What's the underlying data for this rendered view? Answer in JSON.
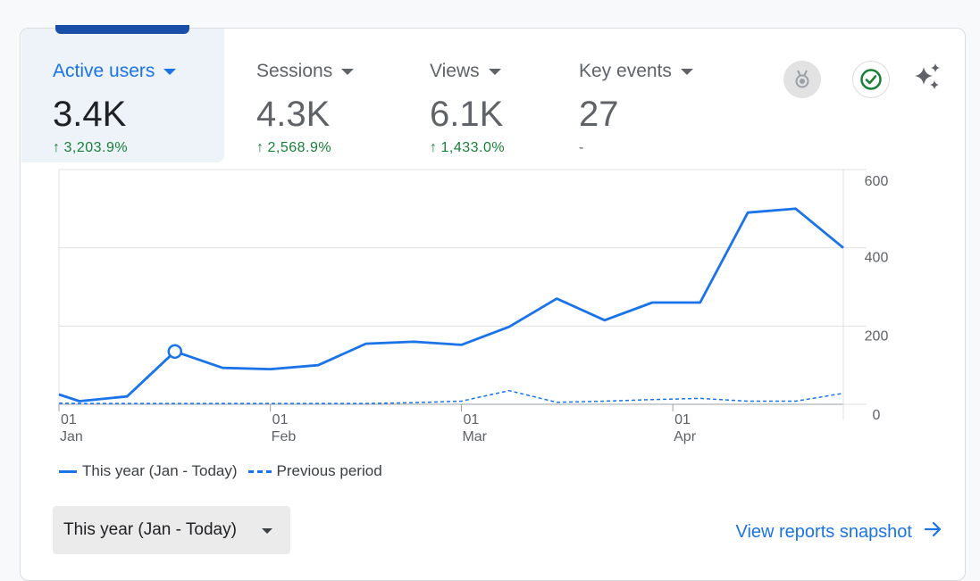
{
  "metrics": [
    {
      "label": "Active users",
      "value": "3.4K",
      "change": "3,203.9%"
    },
    {
      "label": "Sessions",
      "value": "4.3K",
      "change": "2,568.9%"
    },
    {
      "label": "Views",
      "value": "6.1K",
      "change": "1,433.0%"
    },
    {
      "label": "Key events",
      "value": "27",
      "change": "-"
    }
  ],
  "icons": [
    "medal-icon",
    "check-circle-icon",
    "sparkle-icon"
  ],
  "chart_data": {
    "type": "line",
    "x": [
      "2025-01-01",
      "2025-01-04",
      "2025-01-11",
      "2025-01-18",
      "2025-01-25",
      "2025-02-01",
      "2025-02-08",
      "2025-02-15",
      "2025-02-22",
      "2025-03-01",
      "2025-03-08",
      "2025-03-15",
      "2025-03-22",
      "2025-03-29",
      "2025-04-05",
      "2025-04-12",
      "2025-04-19",
      "2025-04-26"
    ],
    "x_ticks": [
      {
        "day": "01",
        "month": "Jan"
      },
      {
        "day": "01",
        "month": "Feb"
      },
      {
        "day": "01",
        "month": "Mar"
      },
      {
        "day": "01",
        "month": "Apr"
      }
    ],
    "y_ticks": [
      "600",
      "400",
      "200",
      "0"
    ],
    "ylim": [
      0,
      600
    ],
    "series": [
      {
        "name": "This year (Jan - Today)",
        "style": "solid",
        "values": [
          25,
          8,
          20,
          135,
          93,
          90,
          100,
          155,
          160,
          152,
          198,
          270,
          215,
          260,
          260,
          490,
          500,
          400
        ]
      },
      {
        "name": "Previous period",
        "style": "dashed",
        "values": [
          3,
          2,
          2,
          2,
          2,
          2,
          2,
          2,
          4,
          8,
          35,
          5,
          8,
          12,
          15,
          8,
          8,
          28
        ]
      }
    ],
    "highlight_index": 3,
    "colors": {
      "line": "#1a73e8",
      "grid": "#e0e0e0",
      "axis_text": "#5f6368"
    }
  },
  "date_range": {
    "label": "This year (Jan - Today)"
  },
  "snapshot_link": {
    "label": "View reports snapshot",
    "arrow": "→"
  }
}
